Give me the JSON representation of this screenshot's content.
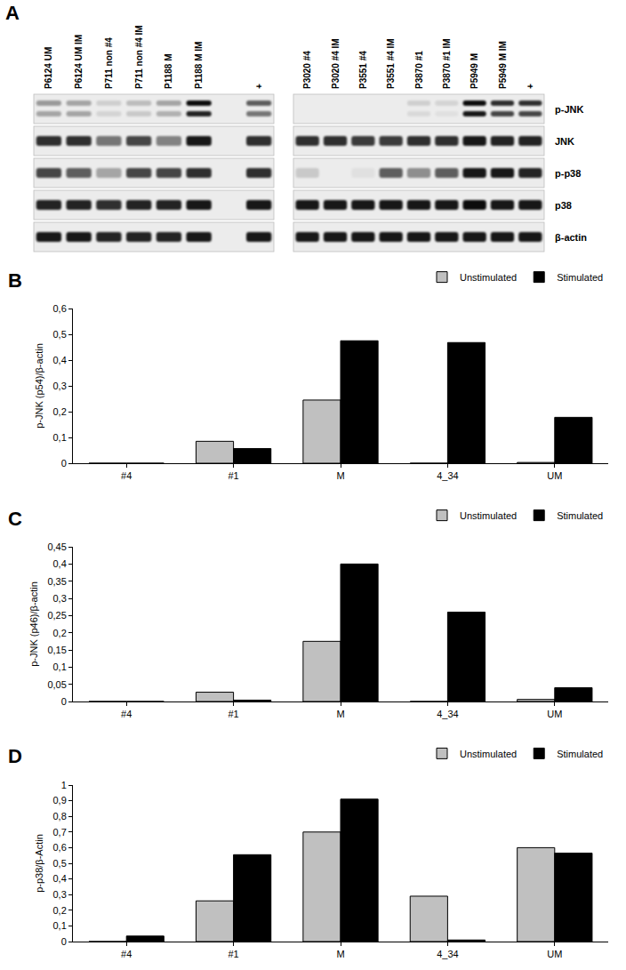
{
  "blot": {
    "letter": "A",
    "blocks": [
      {
        "lanes": [
          "P6124 UM",
          "P6124 UM IM",
          "P711 non #4",
          "P711 non #4 IM",
          "P1188 M",
          "P1188 M IM",
          null,
          "+"
        ],
        "rows": [
          {
            "label": "p-JNK",
            "bands": [
              [
                0.35,
                0.3,
                0.12,
                0.2,
                0.3,
                0.95,
                0,
                0.6
              ],
              [
                0.3,
                0.3,
                0.1,
                0.15,
                0.25,
                0.85,
                0,
                0.5
              ]
            ]
          },
          {
            "label": "JNK",
            "bands": [
              [
                0.8,
                0.8,
                0.5,
                0.7,
                0.45,
                0.9,
                0,
                0.8
              ]
            ]
          },
          {
            "label": "p-p38",
            "bands": [
              [
                0.7,
                0.6,
                0.3,
                0.7,
                0.7,
                0.8,
                0,
                0.8
              ]
            ]
          },
          {
            "label": "p38",
            "bands": [
              [
                0.85,
                0.85,
                0.8,
                0.85,
                0.85,
                0.9,
                0,
                0.9
              ]
            ]
          },
          {
            "label": "β-actin",
            "bands": [
              [
                0.9,
                0.9,
                0.85,
                0.85,
                0.85,
                0.9,
                0,
                0.9
              ]
            ]
          }
        ]
      },
      {
        "lanes": [
          "P3020 #4",
          "P3020 #4 IM",
          "P3551 #4",
          "P3551 #4 IM",
          "P3870 #1",
          "P3870 #1 IM",
          "P5949 M",
          "P5949 M IM",
          "+"
        ],
        "rows": [
          {
            "label": "p-JNK",
            "bands": [
              [
                0,
                0,
                0,
                0,
                0.12,
                0.1,
                0.95,
                0.8,
                0.8
              ],
              [
                0,
                0,
                0,
                0,
                0.08,
                0.05,
                0.9,
                0.7,
                0.7
              ]
            ]
          },
          {
            "label": "JNK",
            "bands": [
              [
                0.8,
                0.8,
                0.75,
                0.75,
                0.8,
                0.8,
                0.9,
                0.85,
                0.85
              ]
            ]
          },
          {
            "label": "p-p38",
            "bands": [
              [
                0.15,
                0,
                0.05,
                0.6,
                0.4,
                0.6,
                0.9,
                0.9,
                0.85
              ]
            ]
          },
          {
            "label": "p38",
            "bands": [
              [
                0.9,
                0.9,
                0.9,
                0.9,
                0.9,
                0.9,
                0.95,
                0.9,
                0.9
              ]
            ]
          },
          {
            "label": "β-actin",
            "bands": [
              [
                0.9,
                0.9,
                0.9,
                0.9,
                0.9,
                0.9,
                0.9,
                0.9,
                0.9
              ]
            ]
          }
        ]
      }
    ]
  },
  "chart_data": [
    {
      "type": "bar",
      "letter": "B",
      "y_label": "p-JNK (p54)/β-actin",
      "categories": [
        "#4",
        "#1",
        "M",
        "4_34",
        "UM"
      ],
      "series": [
        {
          "name": "Unstimulated",
          "color": "#c0c0c0",
          "values": [
            0,
            0.085,
            0.245,
            0,
            0.003
          ]
        },
        {
          "name": "Stimulated",
          "color": "#000000",
          "values": [
            0,
            0.057,
            0.475,
            0.468,
            0.178
          ]
        }
      ],
      "ylim": [
        0,
        0.6
      ],
      "yticks": [
        0,
        {
          "value": 0.1,
          "label": "0,1"
        },
        {
          "value": 0.2,
          "label": "0,2"
        },
        {
          "value": 0.3,
          "label": "0,3"
        },
        {
          "value": 0.4,
          "label": "0,4"
        },
        {
          "value": 0.5,
          "label": "0,5"
        },
        {
          "value": 0.6,
          "label": "0,6"
        }
      ],
      "grid": false,
      "legend": "top right"
    },
    {
      "type": "bar",
      "letter": "C",
      "y_label": "p-JNK (p46)/β-actin",
      "categories": [
        "#4",
        "#1",
        "M",
        "4_34",
        "UM"
      ],
      "series": [
        {
          "name": "Unstimulated",
          "color": "#c0c0c0",
          "values": [
            0,
            0.027,
            0.175,
            0,
            0.006
          ]
        },
        {
          "name": "Stimulated",
          "color": "#000000",
          "values": [
            0,
            0.004,
            0.4,
            0.26,
            0.04
          ]
        }
      ],
      "ylim": [
        0,
        0.45
      ],
      "yticks": [
        0,
        {
          "value": 0.05,
          "label": "0,05"
        },
        {
          "value": 0.1,
          "label": "0,1"
        },
        {
          "value": 0.15,
          "label": "0,15"
        },
        {
          "value": 0.2,
          "label": "0,2"
        },
        {
          "value": 0.25,
          "label": "0,25"
        },
        {
          "value": 0.3,
          "label": "0,3"
        },
        {
          "value": 0.35,
          "label": "0,35"
        },
        {
          "value": 0.4,
          "label": "0,4"
        },
        {
          "value": 0.45,
          "label": "0,45"
        }
      ],
      "grid": false,
      "legend": "top right"
    },
    {
      "type": "bar",
      "letter": "D",
      "y_label": "p-p38/β-Actin",
      "categories": [
        "#4",
        "#1",
        "M",
        "4_34",
        "UM"
      ],
      "series": [
        {
          "name": "Unstimulated",
          "color": "#c0c0c0",
          "values": [
            0,
            0.26,
            0.7,
            0.29,
            0.6
          ]
        },
        {
          "name": "Stimulated",
          "color": "#000000",
          "values": [
            0.035,
            0.555,
            0.91,
            0.01,
            0.565
          ]
        }
      ],
      "ylim": [
        0,
        1
      ],
      "yticks": [
        0,
        {
          "value": 0.1,
          "label": "0,1"
        },
        {
          "value": 0.2,
          "label": "0,2"
        },
        {
          "value": 0.3,
          "label": "0,3"
        },
        {
          "value": 0.4,
          "label": "0,4"
        },
        {
          "value": 0.5,
          "label": "0,5"
        },
        {
          "value": 0.6,
          "label": "0,6"
        },
        {
          "value": 0.7,
          "label": "0,7"
        },
        {
          "value": 0.8,
          "label": "0,8"
        },
        {
          "value": 0.9,
          "label": "0,9"
        },
        1
      ],
      "grid": false,
      "legend": "top right"
    }
  ]
}
